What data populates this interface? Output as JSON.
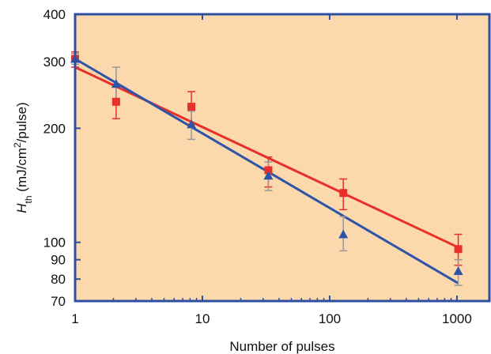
{
  "chart_data": {
    "type": "scatter",
    "title": "",
    "xlabel": "Number of pulses",
    "ylabel": {
      "main": "H",
      "sub": "th",
      "pre": " (mJ/cm",
      "sup": "2",
      "post": "/pulse)"
    },
    "xscale": "log",
    "yscale": "log",
    "xlim": [
      1,
      1800
    ],
    "ylim": [
      70,
      400
    ],
    "xticks": [
      {
        "value": 1,
        "label": "1"
      },
      {
        "value": 10,
        "label": "10"
      },
      {
        "value": 100,
        "label": "100"
      },
      {
        "value": 1000,
        "label": "1000"
      }
    ],
    "yticks": [
      {
        "value": 70,
        "label": "70"
      },
      {
        "value": 80,
        "label": "80"
      },
      {
        "value": 90,
        "label": "90"
      },
      {
        "value": 100,
        "label": "100"
      },
      {
        "value": 200,
        "label": "200"
      },
      {
        "value": 300,
        "label": "300"
      },
      {
        "value": 400,
        "label": "400"
      }
    ],
    "grid": false,
    "legend": "none",
    "colors": {
      "plot_background": "#fbd9ad",
      "axis_frame": "#2d4fa0",
      "square_series": "#e8302a",
      "triangle_series": "#2e54a8",
      "error_bar": "#999999"
    },
    "series": [
      {
        "marker": "square",
        "color": "#e8302a",
        "points": [
          {
            "x": 1,
            "y": 305,
            "err_low": 290,
            "err_high": 318
          },
          {
            "x": 2.1,
            "y": 235,
            "err_low": 212,
            "err_high": 258
          },
          {
            "x": 8.2,
            "y": 228,
            "err_low": 205,
            "err_high": 250
          },
          {
            "x": 33,
            "y": 155,
            "err_low": 140,
            "err_high": 168
          },
          {
            "x": 128,
            "y": 135,
            "err_low": 122,
            "err_high": 147
          },
          {
            "x": 1024,
            "y": 96,
            "err_low": 87,
            "err_high": 105
          }
        ],
        "fit": {
          "x": [
            1,
            1024
          ],
          "y": [
            290,
            97
          ]
        }
      },
      {
        "marker": "triangle",
        "color": "#2e54a8",
        "points": [
          {
            "x": 1,
            "y": 305,
            "err_low": 295,
            "err_high": 315
          },
          {
            "x": 2.1,
            "y": 262,
            "err_low": 238,
            "err_high": 290
          },
          {
            "x": 8.2,
            "y": 205,
            "err_low": 187,
            "err_high": 222
          },
          {
            "x": 33,
            "y": 150,
            "err_low": 137,
            "err_high": 163
          },
          {
            "x": 128,
            "y": 105,
            "err_low": 95,
            "err_high": 117
          },
          {
            "x": 1024,
            "y": 84,
            "err_low": 77,
            "err_high": 90
          }
        ],
        "fit": {
          "x": [
            1,
            1024
          ],
          "y": [
            305,
            78
          ]
        }
      }
    ]
  }
}
